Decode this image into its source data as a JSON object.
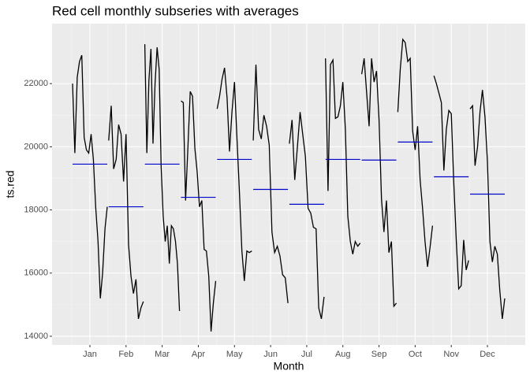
{
  "chart_data": {
    "type": "subseries",
    "title": "Red cell monthly subseries with averages",
    "xlabel": "Month",
    "ylabel": "ts.red",
    "categories": [
      "Jan",
      "Feb",
      "Mar",
      "Apr",
      "May",
      "Jun",
      "Jul",
      "Aug",
      "Sep",
      "Oct",
      "Nov",
      "Dec"
    ],
    "averages": [
      19450,
      18100,
      19450,
      18400,
      19600,
      18650,
      18180,
      19600,
      19580,
      20150,
      19050,
      18500
    ],
    "subseries": [
      [
        22000,
        19800,
        22200,
        22700,
        22900,
        20300,
        19900,
        19800,
        20400,
        19600,
        18100,
        17000,
        15200,
        16000,
        17400,
        18100
      ],
      [
        20200,
        21300,
        19300,
        19600,
        20700,
        20400,
        18900,
        20400,
        16900,
        15900,
        15350,
        15800,
        14550,
        14900,
        15100
      ],
      [
        23250,
        19800,
        22100,
        23100,
        20100,
        22000,
        23150,
        22450,
        19400,
        17800,
        17000,
        17500,
        16300,
        17500,
        17400,
        17000,
        16300,
        14800
      ],
      [
        21450,
        21400,
        18300,
        20000,
        21750,
        21600,
        19950,
        19200,
        18100,
        18300,
        16750,
        16700,
        15900,
        14150,
        15050,
        15750
      ],
      [
        21200,
        21600,
        22150,
        22500,
        21550,
        19850,
        21100,
        22050,
        20300,
        18550,
        16700,
        15750,
        16700,
        16650,
        16700
      ],
      [
        20200,
        22600,
        20550,
        20250,
        21000,
        20650,
        20050,
        17300,
        16650,
        16850,
        16550,
        15950,
        15850,
        15050
      ],
      [
        20100,
        20850,
        18950,
        20000,
        21100,
        20400,
        19700,
        18050,
        17900,
        17450,
        17400,
        14900,
        14550,
        15250
      ],
      [
        22800,
        18600,
        22600,
        22750,
        20900,
        20950,
        21300,
        22050,
        20550,
        17800,
        17000,
        16600,
        17000,
        16850,
        16950
      ],
      [
        22300,
        22800,
        21700,
        20650,
        22800,
        22050,
        22400,
        20850,
        18350,
        17300,
        18300,
        16650,
        17000,
        14950,
        15050
      ],
      [
        21100,
        22450,
        23400,
        23300,
        22700,
        22800,
        20500,
        19900,
        20650,
        18950,
        18050,
        17000,
        16200,
        16800,
        17500
      ],
      [
        22250,
        22000,
        21700,
        21400,
        19250,
        20550,
        21150,
        21050,
        18900,
        17050,
        15500,
        15600,
        17050,
        16100,
        16400
      ],
      [
        21200,
        21300,
        19400,
        20000,
        21100,
        21800,
        20950,
        19550,
        17000,
        16350,
        16850,
        16600,
        15450,
        14550,
        15200
      ]
    ],
    "line_color": "#000000",
    "average_color": "#0000cd",
    "ylim": [
      13725,
      23900
    ],
    "yticks": [
      14000,
      16000,
      18000,
      20000,
      22000
    ],
    "grid": true
  }
}
